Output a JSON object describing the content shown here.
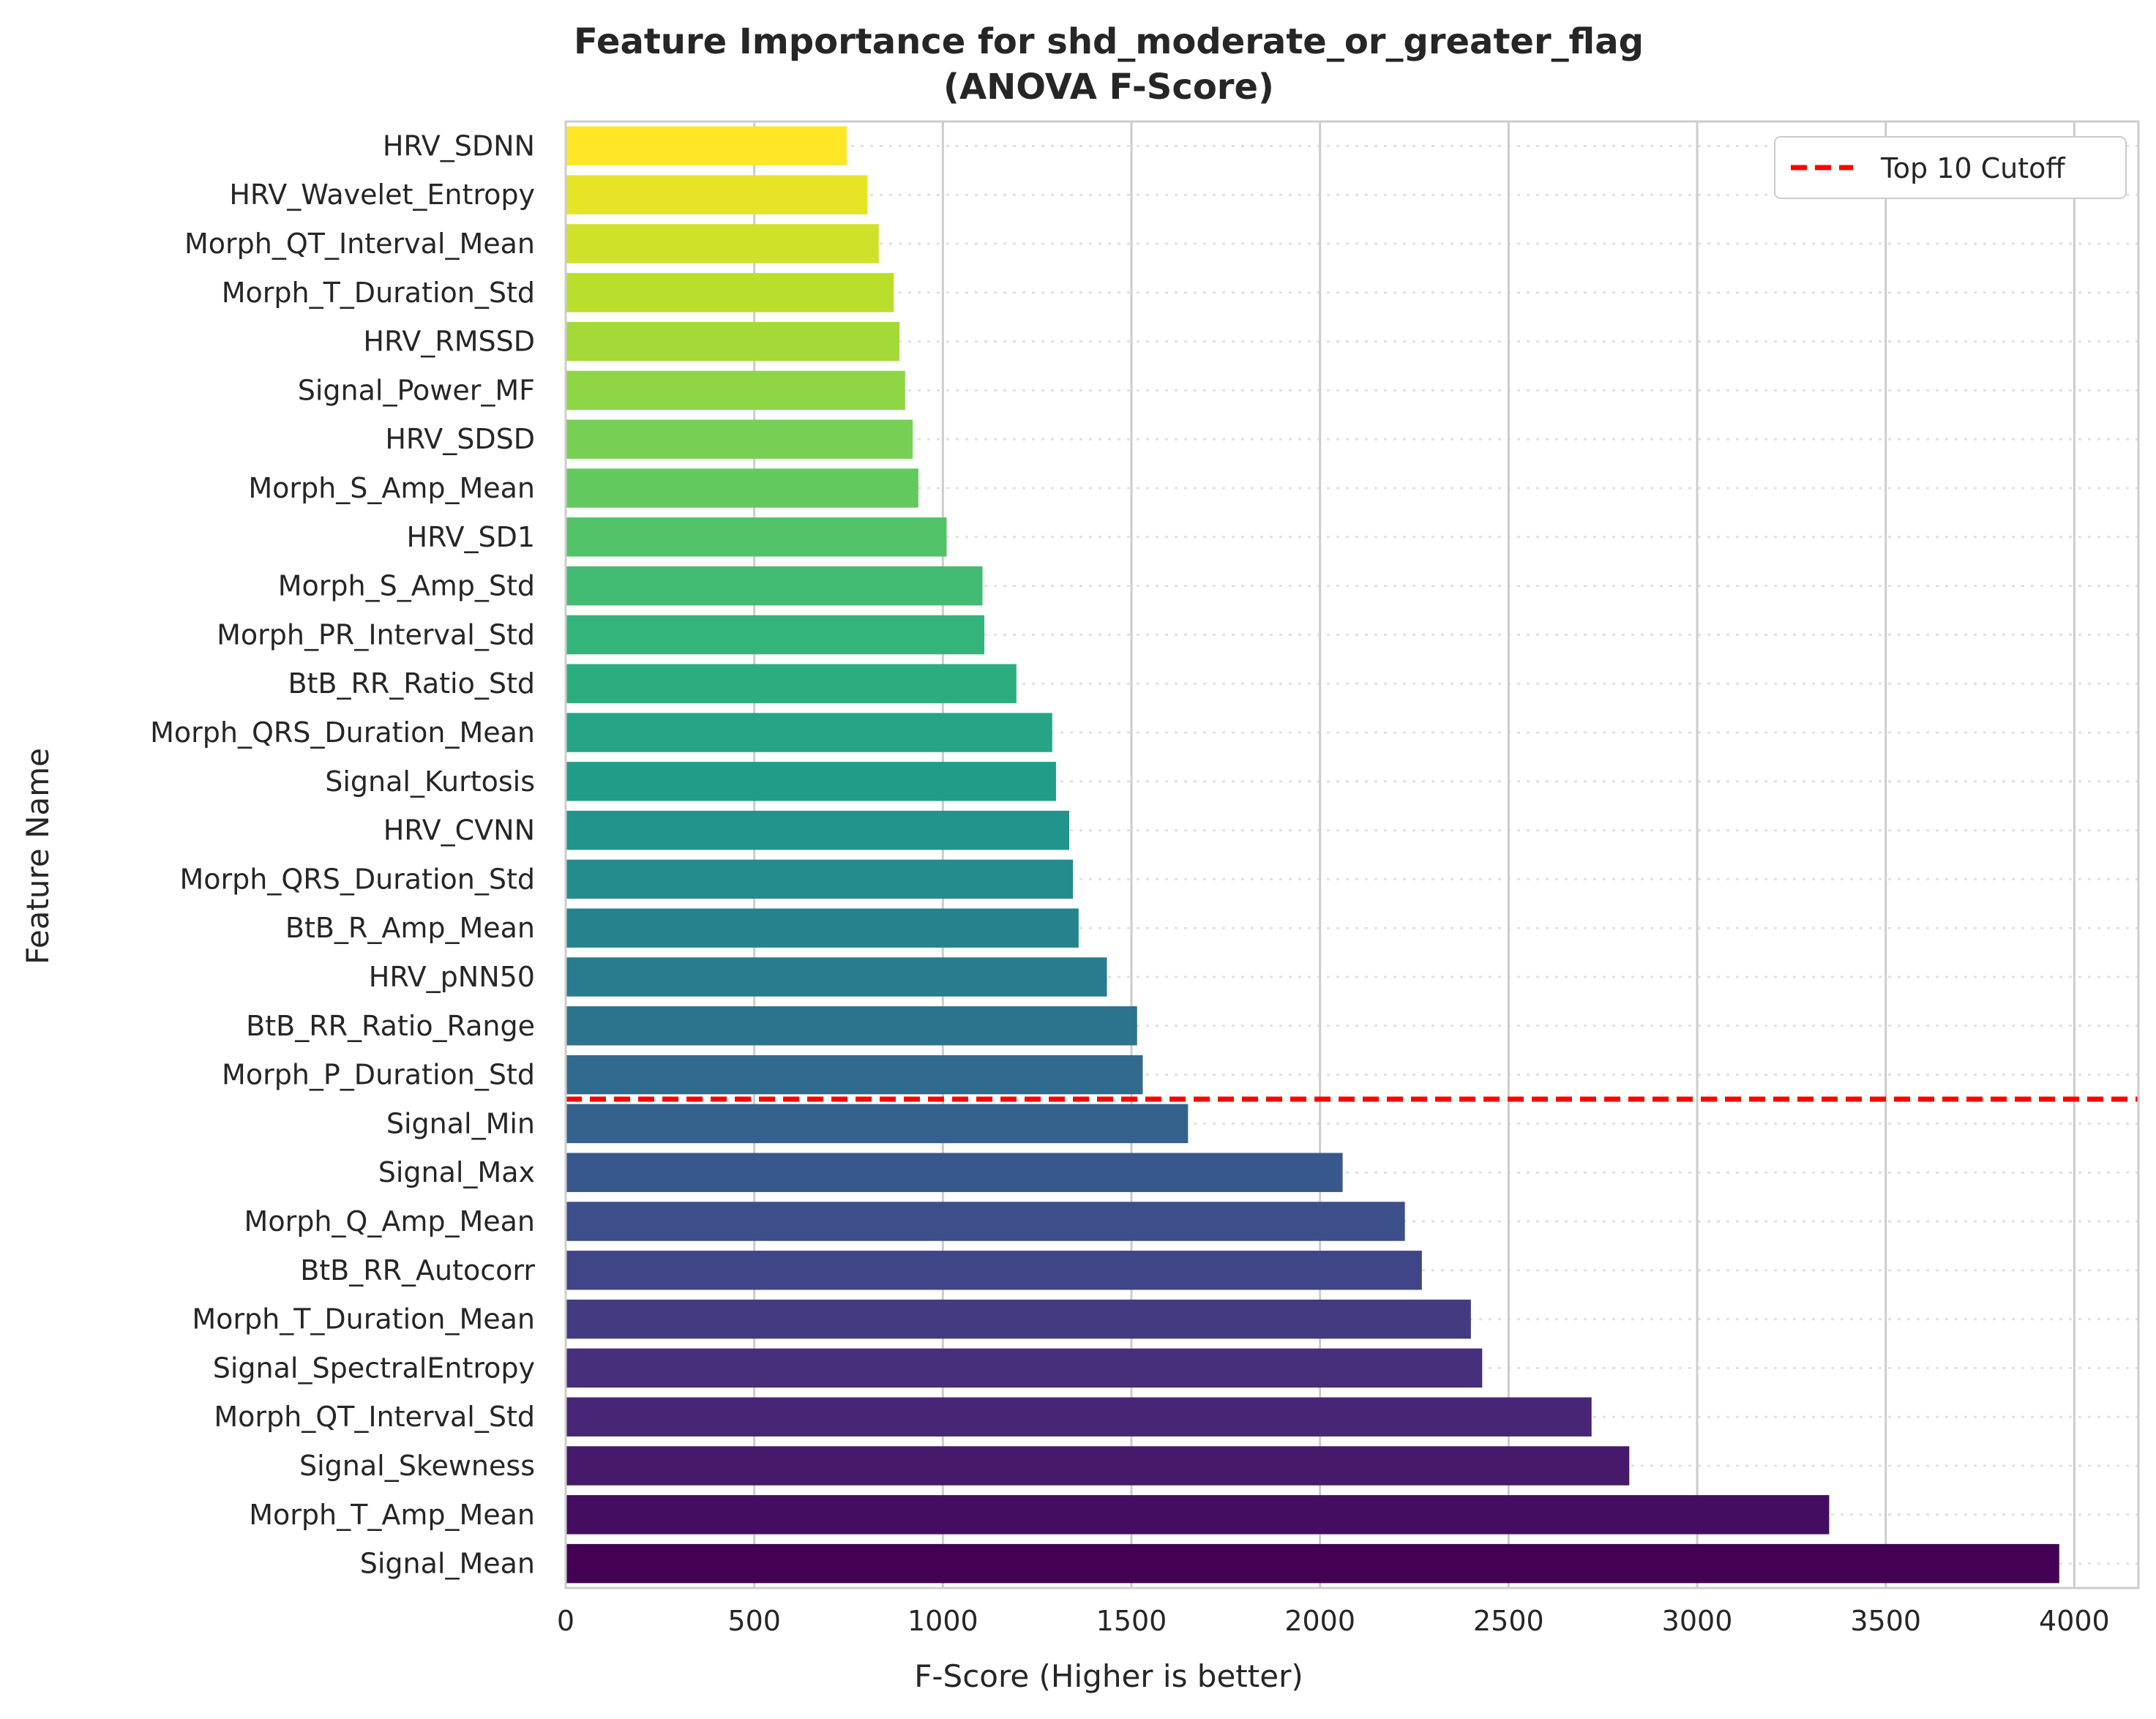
{
  "chart_data": {
    "type": "bar",
    "orientation": "horizontal",
    "title": "Feature Importance for shd_moderate_or_greater_flag",
    "subtitle": "(ANOVA F-Score)",
    "xlabel": "F-Score (Higher is better)",
    "ylabel": "Feature Name",
    "xlim": [
      0,
      4170
    ],
    "xticks": [
      0,
      500,
      1000,
      1500,
      2000,
      2500,
      3000,
      3500,
      4000
    ],
    "grid": true,
    "legend_placement": "top-right",
    "categories": [
      "HRV_SDNN",
      "HRV_Wavelet_Entropy",
      "Morph_QT_Interval_Mean",
      "Morph_T_Duration_Std",
      "HRV_RMSSD",
      "Signal_Power_MF",
      "HRV_SDSD",
      "Morph_S_Amp_Mean",
      "HRV_SD1",
      "Morph_S_Amp_Std",
      "Morph_PR_Interval_Std",
      "BtB_RR_Ratio_Std",
      "Morph_QRS_Duration_Mean",
      "Signal_Kurtosis",
      "HRV_CVNN",
      "Morph_QRS_Duration_Std",
      "BtB_R_Amp_Mean",
      "HRV_pNN50",
      "BtB_RR_Ratio_Range",
      "Morph_P_Duration_Std",
      "Signal_Min",
      "Signal_Max",
      "Morph_Q_Amp_Mean",
      "BtB_RR_Autocorr",
      "Morph_T_Duration_Mean",
      "Signal_SpectralEntropy",
      "Morph_QT_Interval_Std",
      "Signal_Skewness",
      "Morph_T_Amp_Mean",
      "Signal_Mean"
    ],
    "values": [
      745,
      800,
      830,
      870,
      885,
      900,
      920,
      935,
      1010,
      1105,
      1110,
      1195,
      1290,
      1300,
      1335,
      1345,
      1360,
      1435,
      1515,
      1530,
      1650,
      2060,
      2225,
      2270,
      2400,
      2430,
      2720,
      2820,
      3350,
      3960
    ],
    "palette": "viridis",
    "cutoff": {
      "label": "Top 10 Cutoff",
      "after_category_index": 19,
      "color": "#ff0000"
    }
  }
}
